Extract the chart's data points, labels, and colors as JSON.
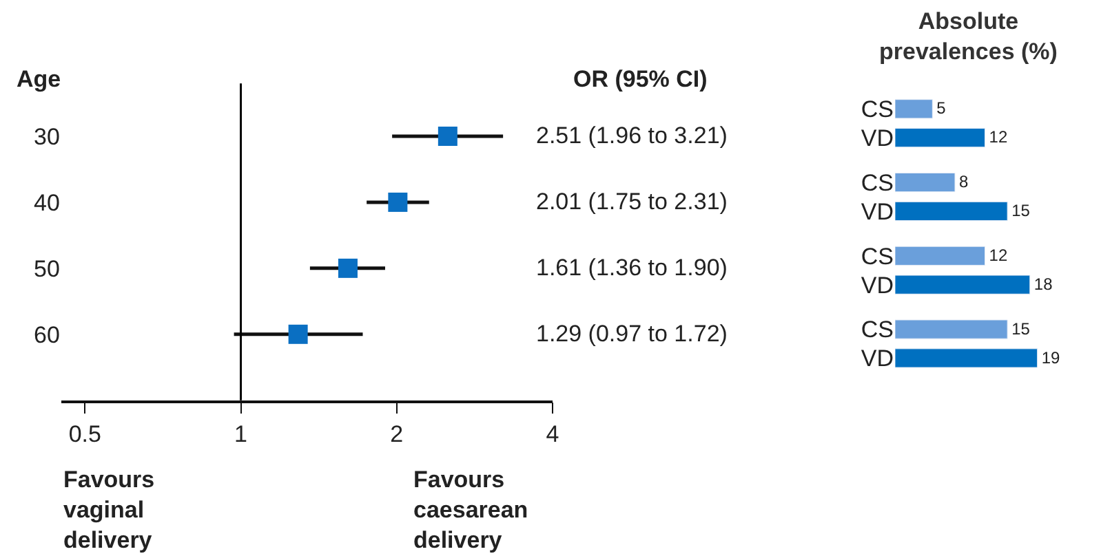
{
  "chart_data": [
    {
      "type": "scatter",
      "ylabel": "Age",
      "color": "#0a6fc2",
      "x": [
        2.51,
        2.01,
        1.61,
        1.29
      ],
      "values": [
        30,
        40,
        50,
        60
      ],
      "xerrors": [
        [
          1.96,
          3.21
        ],
        [
          1.75,
          2.31
        ],
        [
          1.36,
          1.9
        ],
        [
          0.97,
          1.72
        ]
      ],
      "log": "x",
      "xlim": [
        0.45,
        4
      ],
      "xticks": [
        0.5,
        1,
        2,
        4
      ],
      "ylim": [
        70,
        22
      ],
      "yticks": [
        30,
        40,
        50,
        60
      ],
      "marker": "square",
      "grid": false,
      "legend": false,
      "ref_lines": [
        {
          "axis": "x",
          "value": 1,
          "color": "#000000"
        }
      ],
      "annotations": [
        "OR (95% CI)",
        "2.51 (1.96 to 3.21)",
        "2.01 (1.75 to 2.31)",
        "1.61 (1.36 to 1.90)",
        "1.29 (0.97 to 1.72)",
        "Favours\nvaginal\ndelivery",
        "Favours\ncaesarean\ndelivery"
      ]
    },
    {
      "type": "bar",
      "orientation": "horizontal",
      "title": "Absolute\nprevalences (%)",
      "categories": [
        "CS",
        "VD",
        "CS",
        "VD",
        "CS",
        "VD",
        "CS",
        "VD"
      ],
      "values": [
        5,
        12,
        8,
        15,
        12,
        18,
        15,
        19
      ],
      "colors": [
        "#6a9fdb",
        "#0070c0",
        "#6a9fdb",
        "#0070c0",
        "#6a9fdb",
        "#0070c0",
        "#6a9fdb",
        "#0070c0"
      ],
      "data_labels": true,
      "grid": false,
      "legend": false
    }
  ]
}
